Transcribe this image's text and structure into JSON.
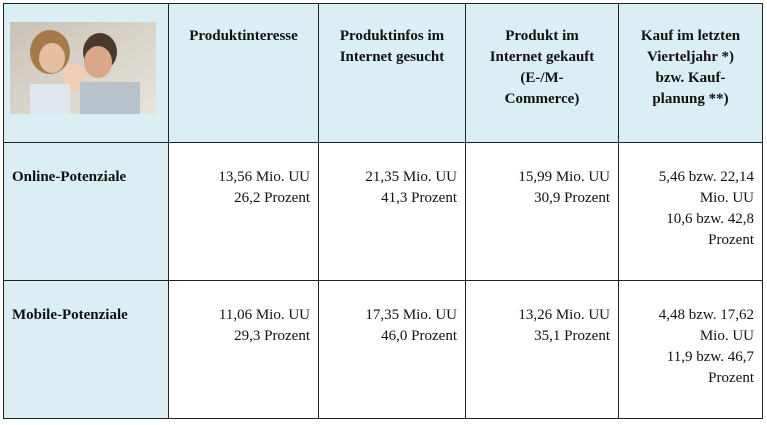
{
  "table": {
    "header": [
      [
        "Produktinteresse"
      ],
      [
        "Produktinfos im",
        "Internet gesucht"
      ],
      [
        "Produkt im",
        "Internet gekauft",
        "(E-/M-",
        "Commerce)"
      ],
      [
        "Kauf im letzten",
        "Vierteljahr *)",
        "bzw.  Kauf-",
        "planung **)"
      ]
    ],
    "rows": [
      {
        "label": "Online-Potenziale",
        "cells": [
          [
            "13,56 Mio. UU",
            "26,2 Prozent"
          ],
          [
            "21,35 Mio. UU",
            "41,3 Prozent"
          ],
          [
            "15,99 Mio. UU",
            "30,9 Prozent"
          ],
          [
            "5,46 bzw. 22,14",
            "Mio. UU",
            "10,6 bzw. 42,8",
            "Prozent"
          ]
        ]
      },
      {
        "label": "Mobile-Potenziale",
        "cells": [
          [
            "11,06 Mio. UU",
            "29,3 Prozent"
          ],
          [
            "17,35 Mio. UU",
            "46,0 Prozent"
          ],
          [
            "13,26 Mio. UU",
            "35,1 Prozent"
          ],
          [
            "4,48 bzw. 17,62",
            "Mio. UU",
            "11,9 bzw. 46,7",
            "Prozent"
          ]
        ]
      }
    ]
  }
}
